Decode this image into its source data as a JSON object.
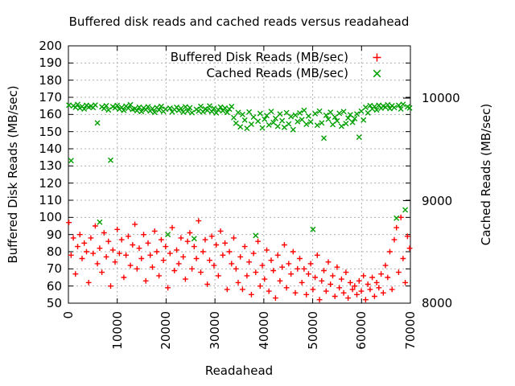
{
  "title": "Buffered disk reads and cached reads versus readahead",
  "legend": [
    {
      "label": "Buffered Disk Reads (MB/sec)",
      "marker": "plus",
      "color": "#ff0000"
    },
    {
      "label": "Cached Reads (MB/sec)",
      "marker": "cross",
      "color": "#00a000"
    }
  ],
  "colors": {
    "background": "#ffffff",
    "border": "#000000",
    "grid": "#b0b0b0",
    "buffered_series": "#ff0000",
    "cached_series": "#00a000"
  },
  "chart_data": {
    "type": "scatter",
    "title": "Buffered disk reads and cached reads versus readahead",
    "xlabel": "Readahead",
    "ylabel": "Buffered Disk Reads (MB/sec)",
    "y2label": "Cached Reads (MB/sec)",
    "xlim": [
      0,
      70000
    ],
    "ylim": [
      50,
      200
    ],
    "y2lim": [
      8000,
      10510
    ],
    "grid": true,
    "legend_position": "top-right-inside",
    "x_ticks": [
      0,
      10000,
      20000,
      30000,
      40000,
      50000,
      60000,
      70000
    ],
    "y1_ticks": [
      50,
      60,
      70,
      80,
      90,
      100,
      110,
      120,
      130,
      140,
      150,
      160,
      170,
      180,
      190,
      200
    ],
    "y2_ticks": [
      8000,
      9000,
      10000
    ],
    "x": [
      100,
      550,
      1000,
      1450,
      1900,
      2350,
      2800,
      3250,
      3700,
      4150,
      4600,
      5050,
      5500,
      5950,
      6400,
      6850,
      7300,
      7750,
      8200,
      8650,
      9100,
      9550,
      10000,
      10450,
      10900,
      11350,
      11800,
      12250,
      12700,
      13150,
      13600,
      14050,
      14500,
      14950,
      15400,
      15850,
      16300,
      16750,
      17200,
      17650,
      18100,
      18550,
      19000,
      19450,
      19900,
      20350,
      20800,
      21250,
      21700,
      22150,
      22600,
      23050,
      23500,
      23950,
      24400,
      24850,
      25300,
      25750,
      26200,
      26650,
      27100,
      27550,
      28000,
      28450,
      28900,
      29350,
      29800,
      30250,
      30700,
      31150,
      31600,
      32050,
      32500,
      32950,
      33400,
      33850,
      34300,
      34750,
      35200,
      35650,
      36100,
      36550,
      37000,
      37450,
      37900,
      38350,
      38800,
      39250,
      39700,
      40150,
      40600,
      41050,
      41500,
      41950,
      42400,
      42850,
      43300,
      43750,
      44200,
      44650,
      45100,
      45550,
      46000,
      46450,
      46900,
      47350,
      47800,
      48250,
      48700,
      49150,
      49600,
      50050,
      50500,
      50950,
      51400,
      51850,
      52300,
      52750,
      53200,
      53650,
      54100,
      54550,
      55000,
      55450,
      55900,
      56350,
      56800,
      57250,
      57700,
      58150,
      58600,
      59050,
      59500,
      59950,
      60400,
      60850,
      61300,
      61750,
      62200,
      62650,
      63100,
      63550,
      64000,
      64450,
      64900,
      65350,
      65800,
      66250,
      66700,
      67150,
      67600,
      68050,
      68500,
      68950,
      69400,
      69850
    ],
    "series": [
      {
        "name": "Buffered Disk Reads (MB/sec)",
        "axis": "y1",
        "marker": "plus",
        "color": "#ff0000",
        "y": [
          97,
          78,
          88,
          67,
          83,
          90,
          76,
          85,
          80,
          62,
          88,
          79,
          95,
          73,
          82,
          68,
          91,
          77,
          86,
          60,
          81,
          74,
          93,
          79,
          87,
          65,
          78,
          89,
          72,
          84,
          96,
          70,
          82,
          76,
          90,
          63,
          85,
          78,
          71,
          92,
          80,
          66,
          87,
          75,
          83,
          59,
          79,
          94,
          69,
          81,
          73,
          88,
          77,
          64,
          86,
          91,
          70,
          83,
          76,
          98,
          68,
          80,
          87,
          61,
          75,
          89,
          72,
          84,
          66,
          92,
          78,
          85,
          58,
          80,
          73,
          88,
          70,
          62,
          77,
          58,
          83,
          66,
          74,
          55,
          79,
          68,
          86,
          60,
          72,
          64,
          81,
          57,
          75,
          69,
          53,
          78,
          63,
          71,
          84,
          59,
          73,
          67,
          80,
          56,
          70,
          76,
          62,
          70,
          55,
          67,
          73,
          58,
          65,
          78,
          52,
          63,
          69,
          57,
          74,
          61,
          66,
          54,
          71,
          59,
          64,
          56,
          68,
          53,
          62,
          58,
          60,
          55,
          63,
          57,
          66,
          52,
          61,
          58,
          65,
          54,
          62,
          59,
          67,
          56,
          72,
          65,
          80,
          58,
          87,
          94,
          68,
          100,
          76,
          62,
          89,
          82
        ]
      },
      {
        "name": "Cached Reads (MB/sec)",
        "axis": "y2",
        "marker": "cross",
        "color": "#00a000",
        "y": [
          9932,
          9390,
          9925,
          9910,
          9938,
          9902,
          9918,
          9894,
          9930,
          9912,
          9921,
          9908,
          9933,
          9758,
          8790,
          9915,
          9899,
          9926,
          9885,
          9395,
          9917,
          9905,
          9929,
          9893,
          9910,
          9880,
          9922,
          9901,
          9936,
          9890,
          9896,
          9878,
          9912,
          9869,
          9904,
          9887,
          9916,
          9875,
          9898,
          9862,
          9908,
          9884,
          9919,
          9871,
          9893,
          8670,
          9902,
          9866,
          9888,
          9911,
          9880,
          9899,
          9864,
          9915,
          9872,
          9906,
          9858,
          8630,
          9890,
          9874,
          9920,
          9867,
          9895,
          9882,
          9924,
          9870,
          9900,
          9856,
          9886,
          9913,
          9877,
          9903,
          9861,
          9892,
          9918,
          9810,
          9755,
          9860,
          9720,
          9840,
          9785,
          9705,
          9865,
          9745,
          9815,
          8660,
          9775,
          9850,
          9710,
          9795,
          9830,
          9738,
          9870,
          9762,
          9802,
          9725,
          9845,
          9780,
          9715,
          9858,
          9748,
          9820,
          9692,
          9835,
          9770,
          9855,
          9790,
          9880,
          9745,
          9825,
          9768,
          8720,
          9848,
          9735,
          9872,
          9758,
          9610,
          9832,
          9795,
          9862,
          9742,
          9815,
          9778,
          9852,
          9726,
          9868,
          9752,
          9806,
          9838,
          9764,
          9800,
          9845,
          9620,
          9872,
          9786,
          9910,
          9856,
          9928,
          9895,
          9918,
          9884,
          9930,
          9902,
          9922,
          9912,
          9935,
          9898,
          9926,
          9908,
          8830,
          9930,
          9894,
          9940,
          8910,
          9916,
          9904
        ]
      }
    ]
  }
}
